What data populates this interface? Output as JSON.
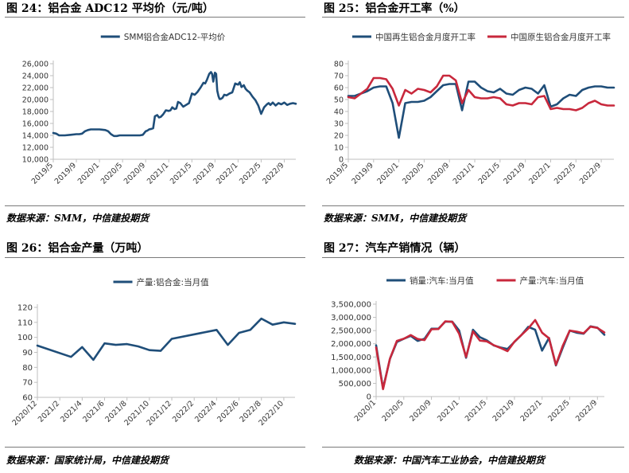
{
  "colors": {
    "navy": "#1f4e79",
    "red": "#c8283c",
    "rule": "#7a7a7a",
    "axis": "#bfbfbf"
  },
  "panels": [
    {
      "title": "图 24：铝合金 ADC12 平均价（元/吨）",
      "source": "数据来源：SMM，中信建投期货"
    },
    {
      "title": "图 25：铝合金开工率（%）",
      "source": "数据来源：SMM，中信建投期货"
    },
    {
      "title": "图 26：铝合金产量（万吨）",
      "source": "数据来源：国家统计局，中信建投期货"
    },
    {
      "title": "图 27：汽车产销情况（辆）",
      "source": "数据来源：中国汽车工业协会，中信建投期货"
    }
  ],
  "chart_data": [
    {
      "type": "line",
      "ylim": [
        10000,
        26000
      ],
      "yticks": [
        10000,
        12000,
        14000,
        16000,
        18000,
        20000,
        22000,
        24000,
        26000
      ],
      "ytick_labels": [
        "10,000",
        "12,000",
        "14,000",
        "16,000",
        "18,000",
        "20,000",
        "22,000",
        "24,000",
        "26,000"
      ],
      "xlim": [
        0,
        42
      ],
      "xticks": [
        0,
        4,
        8,
        12,
        16,
        20,
        24,
        28,
        32,
        36,
        40
      ],
      "xtick_labels": [
        "2019/5",
        "2019/9",
        "2020/1",
        "2020/5",
        "2020/9",
        "2021/1",
        "2021/5",
        "2021/9",
        "2022/1",
        "2022/5",
        "2022/9"
      ],
      "legend": "top",
      "series": [
        {
          "name": "SMM铝合金ADC12-平均价",
          "color": "#1f4e79",
          "x": [
            0,
            0.5,
            1,
            1.5,
            2,
            3,
            4,
            4.5,
            5,
            5.5,
            6,
            6.5,
            7,
            7.5,
            8,
            9,
            9.5,
            10,
            10.5,
            11,
            11.5,
            12,
            12.5,
            13,
            14,
            15,
            15.5,
            16,
            16.3,
            16.6,
            17,
            17.3,
            17.6,
            18,
            18.3,
            18.6,
            19,
            19.5,
            20,
            20.3,
            20.6,
            21,
            21.3,
            21.6,
            22,
            22.5,
            23,
            23.5,
            24,
            24.5,
            25,
            25.5,
            26,
            26.3,
            26.6,
            27,
            27.3,
            27.5,
            27.7,
            28,
            28.2,
            28.4,
            28.6,
            28.8,
            29,
            29.3,
            29.6,
            30,
            30.5,
            31,
            31.5,
            32,
            32.3,
            32.6,
            33,
            33.3,
            33.6,
            34,
            34.5,
            35,
            35.5,
            36,
            36.5,
            37,
            37.3,
            37.6,
            38,
            38.5,
            39,
            39.5,
            40,
            40.5,
            41,
            41.5,
            42
          ],
          "y": [
            14400,
            14300,
            14000,
            14000,
            14000,
            14100,
            14200,
            14200,
            14300,
            14700,
            14900,
            15000,
            15000,
            15000,
            15000,
            14900,
            14700,
            14200,
            13900,
            13900,
            14000,
            14000,
            14000,
            14000,
            14000,
            14000,
            14100,
            14700,
            14800,
            15000,
            15100,
            15200,
            17200,
            17400,
            17000,
            17100,
            17500,
            18200,
            18100,
            18200,
            18700,
            18400,
            18500,
            19600,
            19400,
            18800,
            19100,
            19400,
            21000,
            20800,
            21300,
            22000,
            22800,
            22700,
            23300,
            24300,
            24600,
            24300,
            23000,
            24500,
            24300,
            21500,
            20600,
            20100,
            20100,
            20300,
            20800,
            20700,
            21000,
            21200,
            22700,
            22500,
            22900,
            22100,
            22400,
            21800,
            21500,
            21200,
            20500,
            19900,
            19000,
            17600,
            18700,
            19200,
            19400,
            19100,
            19500,
            19000,
            19400,
            19200,
            19500,
            19100,
            19300,
            19400,
            19300
          ]
        }
      ]
    },
    {
      "type": "line",
      "ylim": [
        0,
        80
      ],
      "yticks": [
        0,
        10,
        20,
        30,
        40,
        50,
        60,
        70,
        80
      ],
      "ytick_labels": [
        "0",
        "10",
        "20",
        "30",
        "40",
        "50",
        "60",
        "70",
        "80"
      ],
      "xlim": [
        0,
        42
      ],
      "xticks": [
        0,
        4,
        8,
        12,
        16,
        20,
        24,
        28,
        32,
        36,
        40
      ],
      "xtick_labels": [
        "2019/5",
        "2019/9",
        "2020/1",
        "2020/5",
        "2020/9",
        "2021/1",
        "2021/5",
        "2021/9",
        "2022/1",
        "2022/5",
        "2022/9"
      ],
      "legend": "top",
      "series": [
        {
          "name": "中国再生铝合金月度开工率",
          "color": "#1f4e79",
          "x": [
            0,
            1,
            2,
            3,
            4,
            5,
            6,
            7,
            8,
            9,
            10,
            11,
            12,
            13,
            14,
            15,
            16,
            17,
            18,
            19,
            20,
            21,
            22,
            23,
            24,
            25,
            26,
            27,
            28,
            29,
            30,
            31,
            32,
            33,
            34,
            35,
            36,
            37,
            38,
            39,
            40,
            41,
            42
          ],
          "y": [
            53,
            53,
            55,
            57,
            60,
            61,
            61,
            47,
            18,
            47,
            48,
            48,
            49,
            52,
            57,
            62,
            63,
            63,
            41,
            65,
            65,
            60,
            57,
            56,
            59,
            55,
            54,
            58,
            60,
            59,
            55,
            62,
            44,
            46,
            51,
            54,
            53,
            58,
            60,
            61,
            61,
            60,
            60
          ]
        },
        {
          "name": "中国原生铝合金月度开工率",
          "color": "#c8283c",
          "x": [
            0,
            1,
            2,
            3,
            4,
            5,
            6,
            7,
            8,
            9,
            10,
            11,
            12,
            13,
            14,
            15,
            16,
            17,
            18,
            19,
            20,
            21,
            22,
            23,
            24,
            25,
            26,
            27,
            28,
            29,
            30,
            31,
            32,
            33,
            34,
            35,
            36,
            37,
            38,
            39,
            40,
            41,
            42
          ],
          "y": [
            52,
            51,
            55,
            59,
            68,
            68,
            67,
            59,
            45,
            58,
            55,
            59,
            58,
            56,
            61,
            70,
            70,
            66,
            47,
            58,
            52,
            51,
            51,
            52,
            51,
            46,
            45,
            47,
            47,
            46,
            52,
            53,
            42,
            43,
            42,
            42,
            41,
            43,
            47,
            49,
            46,
            45,
            45
          ]
        }
      ]
    },
    {
      "type": "line",
      "ylim": [
        60,
        120
      ],
      "yticks": [
        60,
        70,
        80,
        90,
        100,
        110,
        120
      ],
      "ytick_labels": [
        "60",
        "70",
        "80",
        "90",
        "100",
        "110",
        "120"
      ],
      "xlim": [
        0,
        23
      ],
      "xticks": [
        0,
        2,
        4,
        6,
        8,
        10,
        12,
        14,
        16,
        18,
        20,
        22
      ],
      "xtick_labels": [
        "2020/12",
        "2021/2",
        "2021/4",
        "2021/6",
        "2021/8",
        "2021/10",
        "2021/12",
        "2022/2",
        "2022/4",
        "2022/6",
        "2022/8",
        "2022/10"
      ],
      "legend": "top",
      "series": [
        {
          "name": "产量:铝合金:当月值",
          "color": "#1f4e79",
          "x": [
            0,
            3,
            4,
            5,
            6,
            7,
            8,
            9,
            10,
            11,
            12,
            16,
            17,
            18,
            19,
            20,
            21,
            22,
            23
          ],
          "y": [
            94.5,
            87,
            93.5,
            85,
            96,
            95,
            95.5,
            94,
            91.5,
            91,
            99,
            105,
            95,
            103,
            105,
            112.5,
            108.5,
            110,
            109
          ]
        }
      ]
    },
    {
      "type": "line",
      "ylim": [
        0,
        3500000
      ],
      "yticks": [
        0,
        500000,
        1000000,
        1500000,
        2000000,
        2500000,
        3000000,
        3500000
      ],
      "ytick_labels": [
        "0",
        "500,000",
        "1,000,000",
        "1,500,000",
        "2,000,000",
        "2,500,000",
        "3,000,000",
        "3,500,000"
      ],
      "xlim": [
        0,
        33
      ],
      "xticks": [
        0,
        4,
        8,
        12,
        16,
        20,
        24,
        28,
        32
      ],
      "xtick_labels": [
        "2020/1",
        "2020/5",
        "2020/9",
        "2021/1",
        "2021/5",
        "2021/9",
        "2022/1",
        "2022/5",
        "2022/9"
      ],
      "legend": "top",
      "series": [
        {
          "name": "销量:汽车:当月值",
          "color": "#1f4e79",
          "x": [
            0,
            1,
            2,
            3,
            4,
            5,
            6,
            7,
            8,
            9,
            10,
            11,
            12,
            13,
            14,
            15,
            16,
            17,
            18,
            19,
            20,
            21,
            22,
            23,
            24,
            25,
            26,
            27,
            28,
            29,
            30,
            31,
            32,
            33
          ],
          "y": [
            1940000,
            310000,
            1430000,
            2070000,
            2190000,
            2300000,
            2110000,
            2190000,
            2570000,
            2570000,
            2840000,
            2840000,
            2500000,
            1470000,
            2530000,
            2250000,
            2130000,
            1940000,
            1860000,
            1800000,
            2070000,
            2330000,
            2640000,
            2530000,
            1740000,
            2220000,
            1180000,
            1860000,
            2500000,
            2420000,
            2380000,
            2660000,
            2610000,
            2340000
          ]
        },
        {
          "name": "产量:汽车:当月值",
          "color": "#c8283c",
          "x": [
            0,
            1,
            2,
            3,
            4,
            5,
            6,
            7,
            8,
            9,
            10,
            11,
            12,
            13,
            14,
            15,
            16,
            17,
            18,
            19,
            20,
            21,
            22,
            23,
            24,
            25,
            26,
            27,
            28,
            29,
            30,
            31,
            32,
            33
          ],
          "y": [
            1860000,
            280000,
            1440000,
            2110000,
            2190000,
            2330000,
            2180000,
            2140000,
            2550000,
            2560000,
            2850000,
            2830000,
            2380000,
            1500000,
            2470000,
            2120000,
            2090000,
            1950000,
            1840000,
            1720000,
            2080000,
            2330000,
            2580000,
            2900000,
            2420000,
            2210000,
            1200000,
            1930000,
            2500000,
            2460000,
            2400000,
            2650000,
            2600000,
            2430000
          ]
        }
      ]
    }
  ]
}
